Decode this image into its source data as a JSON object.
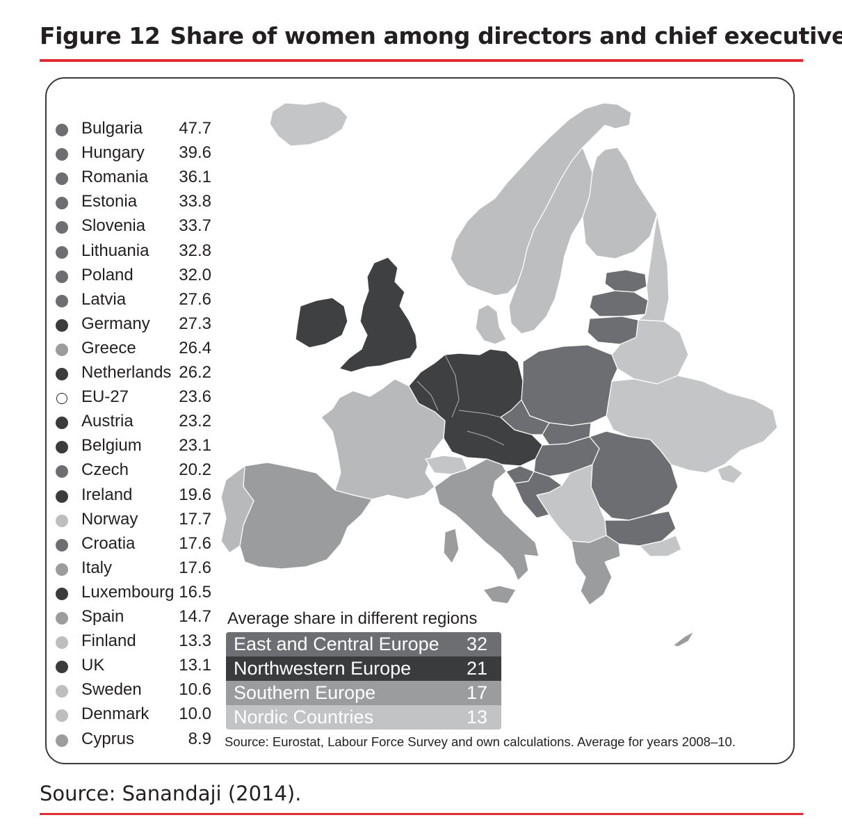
{
  "title": {
    "figure": "Figure 12",
    "text": "Share of women among directors and chief executives"
  },
  "legend": [
    {
      "country": "Bulgaria",
      "value": "47.7",
      "group": "east_central"
    },
    {
      "country": "Hungary",
      "value": "39.6",
      "group": "east_central"
    },
    {
      "country": "Romania",
      "value": "36.1",
      "group": "east_central"
    },
    {
      "country": "Estonia",
      "value": "33.8",
      "group": "east_central"
    },
    {
      "country": "Slovenia",
      "value": "33.7",
      "group": "east_central"
    },
    {
      "country": "Lithuania",
      "value": "32.8",
      "group": "east_central"
    },
    {
      "country": "Poland",
      "value": "32.0",
      "group": "east_central"
    },
    {
      "country": "Latvia",
      "value": "27.6",
      "group": "east_central"
    },
    {
      "country": "Germany",
      "value": "27.3",
      "group": "northwestern"
    },
    {
      "country": "Greece",
      "value": "26.4",
      "group": "southern"
    },
    {
      "country": "Netherlands",
      "value": "26.2",
      "group": "northwestern"
    },
    {
      "country": "EU-27",
      "value": "23.6",
      "group": "eu"
    },
    {
      "country": "Austria",
      "value": "23.2",
      "group": "northwestern"
    },
    {
      "country": "Belgium",
      "value": "23.1",
      "group": "northwestern"
    },
    {
      "country": "Czech",
      "value": "20.2",
      "group": "east_central"
    },
    {
      "country": "Ireland",
      "value": "19.6",
      "group": "northwestern"
    },
    {
      "country": "Norway",
      "value": "17.7",
      "group": "nordic"
    },
    {
      "country": "Croatia",
      "value": "17.6",
      "group": "east_central"
    },
    {
      "country": "Italy",
      "value": "17.6",
      "group": "southern"
    },
    {
      "country": "Luxembourg",
      "value": "16.5",
      "group": "northwestern"
    },
    {
      "country": "Spain",
      "value": "14.7",
      "group": "southern"
    },
    {
      "country": "Finland",
      "value": "13.3",
      "group": "nordic"
    },
    {
      "country": "UK",
      "value": "13.1",
      "group": "northwestern"
    },
    {
      "country": "Sweden",
      "value": "10.6",
      "group": "nordic"
    },
    {
      "country": "Denmark",
      "value": "10.0",
      "group": "nordic"
    },
    {
      "country": "Cyprus",
      "value": "8.9",
      "group": "southern"
    }
  ],
  "regions": {
    "title": "Average share in different regions",
    "rows": [
      {
        "name": "East and Central Europe",
        "value": "32",
        "group": "east_central"
      },
      {
        "name": "Northwestern Europe",
        "value": "21",
        "group": "northwestern"
      },
      {
        "name": "Southern Europe",
        "value": "17",
        "group": "southern"
      },
      {
        "name": "Nordic Countries",
        "value": "13",
        "group": "nordic"
      }
    ]
  },
  "colors": {
    "east_central": "#6d6e71",
    "northwestern": "#3f4042",
    "southern": "#9b9c9e",
    "nordic": "#bdbec0",
    "non_eu": "#c4c5c7",
    "eu": "#ffffff",
    "accent_rule": "#e32b36"
  },
  "source_inner": "Source: Eurostat, Labour Force Survey and own calculations. Average for years 2008–10.",
  "source_outer": "Source: Sanandaji (2014)."
}
